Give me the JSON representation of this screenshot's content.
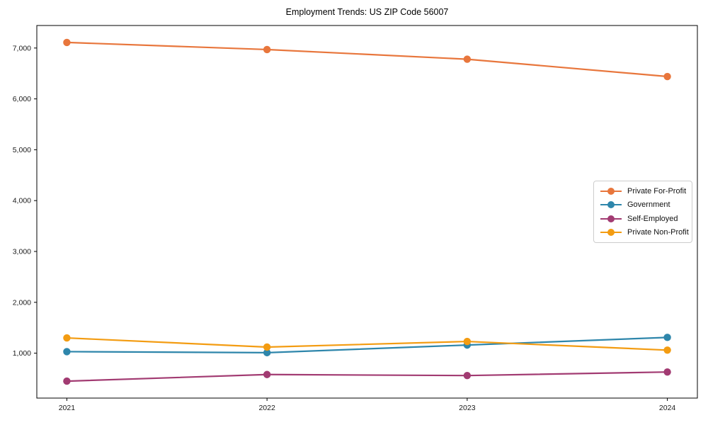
{
  "page": {
    "title": "Employment Trends: US ZIP Code 56007"
  },
  "chart_data": {
    "type": "line",
    "title": "Employment Trends: US ZIP Code 56007",
    "x": [
      2021,
      2022,
      2023,
      2024
    ],
    "x_tick_labels": [
      "2021",
      "2022",
      "2023",
      "2024"
    ],
    "series": [
      {
        "name": "Private For-Profit",
        "color": "#E8763C",
        "values": [
          7110,
          6970,
          6780,
          6440
        ]
      },
      {
        "name": "Government",
        "color": "#2E86AB",
        "values": [
          1030,
          1010,
          1160,
          1310
        ]
      },
      {
        "name": "Self-Employed",
        "color": "#A23B72",
        "values": [
          450,
          580,
          560,
          630
        ]
      },
      {
        "name": "Private Non-Profit",
        "color": "#F39C12",
        "values": [
          1300,
          1120,
          1230,
          1060
        ]
      }
    ],
    "y_ticks": [
      1000,
      2000,
      3000,
      4000,
      5000,
      6000,
      7000
    ],
    "y_tick_labels": [
      "1,000",
      "2,000",
      "3,000",
      "4,000",
      "5,000",
      "6,000",
      "7,000"
    ],
    "xlim": [
      2020.85,
      2024.15
    ],
    "ylim": [
      117,
      7443
    ],
    "grid": false,
    "legend_position": "center-right",
    "marker": "circle",
    "line_width": 2.2,
    "marker_radius": 5.2,
    "spine_color": "#000000",
    "tick_text_color": "#1a1a1a",
    "background_color": "#ffffff"
  }
}
